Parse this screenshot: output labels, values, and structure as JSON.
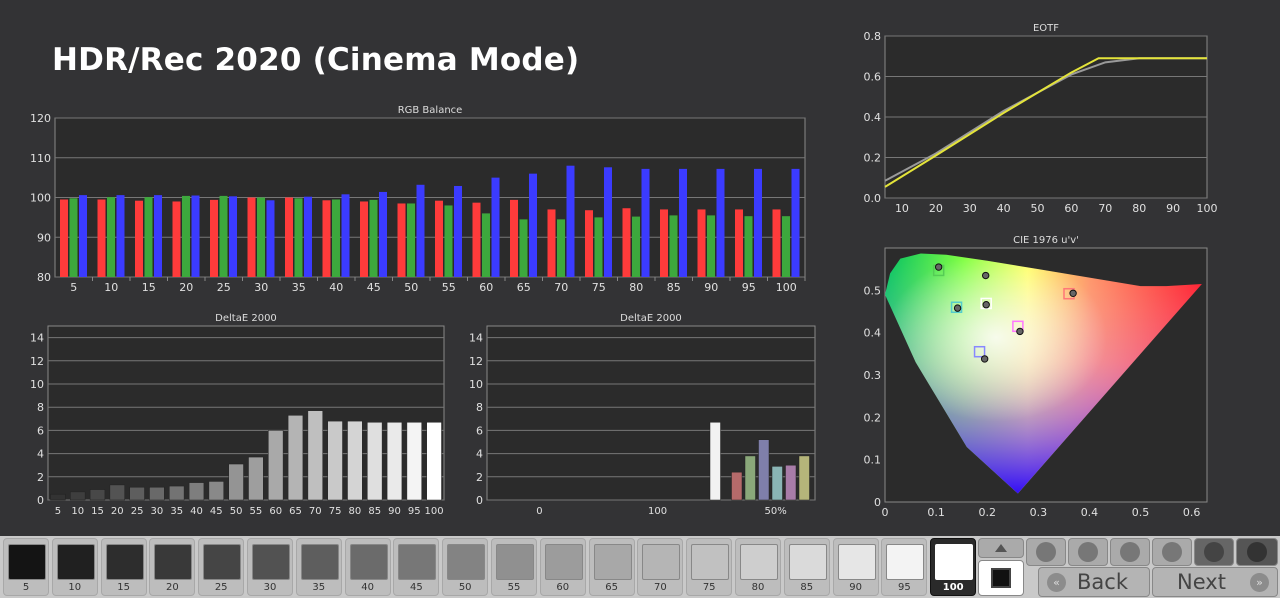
{
  "title": "HDR/Rec 2020 (Cinema Mode)",
  "chart_data": [
    {
      "id": "rgb",
      "type": "bar",
      "title": "RGB Balance",
      "categories": [
        "5",
        "10",
        "15",
        "20",
        "25",
        "30",
        "35",
        "40",
        "45",
        "50",
        "55",
        "60",
        "65",
        "70",
        "75",
        "80",
        "85",
        "90",
        "95",
        "100"
      ],
      "ylim": [
        80,
        120
      ],
      "yticks": [
        80,
        90,
        100,
        110,
        120
      ],
      "series": [
        {
          "color": "#ff3b3b",
          "values": [
            99.5,
            99.5,
            99.2,
            99,
            99.4,
            100,
            100,
            99.3,
            99,
            98.5,
            99.2,
            98.7,
            99.4,
            97,
            96.8,
            97.3,
            97,
            97,
            97,
            97
          ]
        },
        {
          "color": "#3da83d",
          "values": [
            99.8,
            100.1,
            100.1,
            100.4,
            100.4,
            100,
            99.8,
            99.5,
            99.4,
            98.5,
            98,
            96,
            94.5,
            94.5,
            95,
            95.2,
            95.5,
            95.5,
            95.3,
            95.3
          ]
        },
        {
          "color": "#3b3bff",
          "values": [
            100.6,
            100.6,
            100.6,
            100.5,
            100.3,
            99.3,
            100.2,
            100.8,
            101.4,
            103.2,
            102.9,
            105,
            106,
            108,
            107.6,
            107.2,
            107.2,
            107.2,
            107.2,
            107.2
          ]
        }
      ],
      "grid": true
    },
    {
      "id": "de-gray",
      "type": "bar",
      "title": "DeltaE 2000",
      "categories": [
        "5",
        "10",
        "15",
        "20",
        "25",
        "30",
        "35",
        "40",
        "45",
        "50",
        "55",
        "60",
        "65",
        "70",
        "75",
        "80",
        "85",
        "90",
        "95",
        "100"
      ],
      "ylim": [
        0,
        15
      ],
      "yticks": [
        0,
        2,
        4,
        6,
        8,
        10,
        12,
        14
      ],
      "values": [
        0.5,
        0.7,
        0.9,
        1.3,
        1.1,
        1.1,
        1.2,
        1.5,
        1.6,
        3.1,
        3.7,
        6.0,
        7.3,
        7.7,
        6.8,
        6.8,
        6.7,
        6.7,
        6.7,
        6.7
      ],
      "grid": true
    },
    {
      "id": "de-color",
      "type": "bar",
      "title": "DeltaE 2000",
      "xticks": [
        "0",
        "100",
        "50%"
      ],
      "ylim": [
        0,
        15
      ],
      "yticks": [
        0,
        2,
        4,
        6,
        8,
        10,
        12,
        14
      ],
      "values": [
        6.7,
        2.4,
        3.8,
        5.2,
        2.9,
        3.0,
        3.8
      ],
      "colors": [
        "#f2f2f2",
        "#b56a6a",
        "#8aa87a",
        "#7f7faa",
        "#8ab5b5",
        "#a87ca8",
        "#b5b57a"
      ],
      "grid": true
    },
    {
      "id": "eotf",
      "type": "line",
      "title": "EOTF",
      "xlim": [
        5,
        100
      ],
      "ylim": [
        0,
        0.8
      ],
      "xticks": [
        10,
        20,
        30,
        40,
        50,
        60,
        70,
        80,
        90,
        100
      ],
      "yticks": [
        0,
        0.2,
        0.4,
        0.6,
        0.8
      ],
      "series": [
        {
          "color": "#e4e43a",
          "x": [
            5,
            20,
            40,
            60,
            68,
            80,
            100
          ],
          "y": [
            0.055,
            0.21,
            0.42,
            0.62,
            0.69,
            0.69,
            0.69
          ]
        },
        {
          "color": "#9a9a9a",
          "x": [
            5,
            20,
            40,
            60,
            70,
            80,
            100
          ],
          "y": [
            0.085,
            0.22,
            0.43,
            0.61,
            0.67,
            0.69,
            0.69
          ]
        }
      ],
      "grid": true
    },
    {
      "id": "cie",
      "type": "scatter",
      "title": "CIE 1976 u'v'",
      "xlim": [
        0,
        0.63
      ],
      "ylim": [
        0,
        0.6
      ],
      "xticks": [
        0,
        0.1,
        0.2,
        0.3,
        0.4,
        0.5,
        0.6
      ],
      "yticks": [
        0,
        0.1,
        0.2,
        0.3,
        0.4,
        0.5
      ],
      "targets": [
        {
          "u": 0.105,
          "v": 0.547,
          "color": "#55cc55"
        },
        {
          "u": 0.14,
          "v": 0.46,
          "color": "#55cccc"
        },
        {
          "u": 0.198,
          "v": 0.469,
          "color": "#ffffff"
        },
        {
          "u": 0.36,
          "v": 0.492,
          "color": "#ff7777"
        },
        {
          "u": 0.26,
          "v": 0.415,
          "color": "#ff77ff"
        },
        {
          "u": 0.185,
          "v": 0.355,
          "color": "#8888ff"
        }
      ],
      "measured": [
        {
          "u": 0.105,
          "v": 0.555
        },
        {
          "u": 0.197,
          "v": 0.535
        },
        {
          "u": 0.142,
          "v": 0.458
        },
        {
          "u": 0.198,
          "v": 0.466
        },
        {
          "u": 0.368,
          "v": 0.493
        },
        {
          "u": 0.264,
          "v": 0.403
        },
        {
          "u": 0.195,
          "v": 0.338
        }
      ]
    }
  ],
  "bottom_bar": {
    "swatches": [
      "5",
      "10",
      "15",
      "20",
      "25",
      "30",
      "35",
      "40",
      "45",
      "50",
      "55",
      "60",
      "65",
      "70",
      "75",
      "80",
      "85",
      "90",
      "95",
      "100"
    ],
    "selected": "100",
    "back_label": "Back",
    "next_label": "Next",
    "icons": [
      "eject-icon",
      "stop-icon",
      "play-icon",
      "frame-icon",
      "loop-icon",
      "refresh-icon",
      "record-icon"
    ]
  }
}
